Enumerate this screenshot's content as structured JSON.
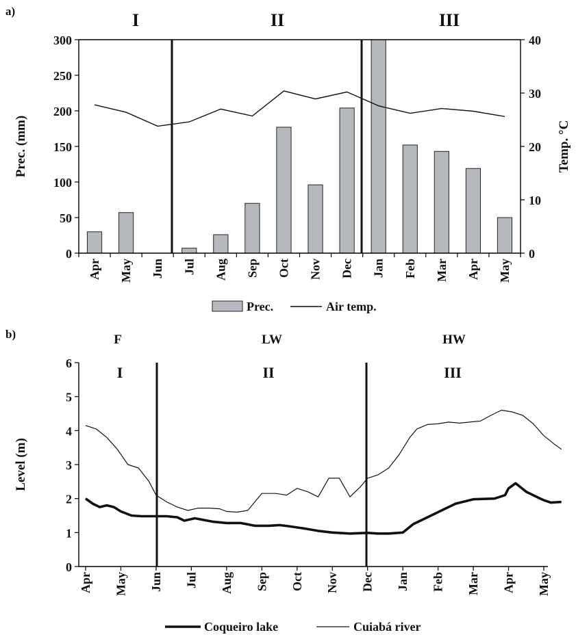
{
  "chart_data": [
    {
      "panel_label": "a)",
      "type": "bar",
      "categories": [
        "Apr",
        "May",
        "Jun",
        "Jul",
        "Aug",
        "Sep",
        "Oct",
        "Nov",
        "Dec",
        "Jan",
        "Feb",
        "Mar",
        "Apr",
        "May"
      ],
      "series": [
        {
          "name": "Prec.",
          "type": "bar",
          "axis": "left",
          "color": "#b5b8bc",
          "values": [
            30,
            57,
            0,
            7,
            26,
            70,
            177,
            96,
            204,
            300,
            152,
            143,
            119,
            50
          ]
        },
        {
          "name": "Air temp.",
          "type": "line",
          "axis": "right",
          "color": "#111111",
          "values": [
            27.8,
            26.4,
            23.8,
            24.6,
            27.0,
            25.7,
            30.4,
            28.9,
            30.2,
            27.6,
            26.2,
            27.1,
            26.6,
            25.6
          ]
        }
      ],
      "ylabel": "Prec. (mm)",
      "ylim": [
        0,
        300
      ],
      "yticks": [
        "0",
        "50",
        "100",
        "150",
        "200",
        "250",
        "300"
      ],
      "y2label": "Temp. °C",
      "y2lim": [
        0,
        40
      ],
      "y2ticks": [
        "0",
        "10",
        "20",
        "30",
        "40"
      ],
      "phases": [
        {
          "label": "I",
          "start": "Apr",
          "end": "Jun"
        },
        {
          "label": "II",
          "start": "Jul",
          "end": "Dec"
        },
        {
          "label": "III",
          "start": "Jan",
          "end": "May"
        }
      ],
      "legend_position": "bottom",
      "grid": false
    },
    {
      "panel_label": "b)",
      "type": "line",
      "x_months": [
        "Apr",
        "May",
        "Jun",
        "Jul",
        "Aug",
        "Sep",
        "Oct",
        "Nov",
        "Dec",
        "Jan",
        "Feb",
        "Mar",
        "Apr",
        "May"
      ],
      "ylabel": "Level (m)",
      "ylim": [
        0,
        6
      ],
      "yticks": [
        "0",
        "1",
        "2",
        "3",
        "4",
        "5",
        "6"
      ],
      "series": [
        {
          "name": "Coqueiro lake",
          "width": "thick",
          "x": [
            0,
            0.2,
            0.4,
            0.6,
            0.8,
            1.0,
            1.3,
            1.6,
            2.0,
            2.3,
            2.6,
            2.8,
            3.1,
            3.6,
            4.0,
            4.4,
            4.8,
            5.2,
            5.5,
            5.8,
            6.2,
            6.6,
            7.0,
            7.5,
            8.0,
            8.3,
            8.6,
            9.0,
            9.3,
            9.7,
            10.0,
            10.5,
            11.0,
            11.3,
            11.6,
            11.9,
            12.0,
            12.2,
            12.5,
            12.8,
            13.0,
            13.2,
            13.5
          ],
          "y": [
            2.0,
            1.85,
            1.75,
            1.8,
            1.75,
            1.62,
            1.5,
            1.48,
            1.48,
            1.48,
            1.45,
            1.35,
            1.42,
            1.32,
            1.28,
            1.28,
            1.2,
            1.2,
            1.22,
            1.18,
            1.12,
            1.05,
            1.0,
            0.97,
            0.99,
            0.97,
            0.97,
            1.0,
            1.25,
            1.45,
            1.6,
            1.85,
            1.98,
            1.99,
            2.0,
            2.1,
            2.3,
            2.45,
            2.2,
            2.05,
            1.95,
            1.88,
            1.9
          ]
        },
        {
          "name": "Cuiabá river",
          "width": "thin",
          "x": [
            0,
            0.3,
            0.6,
            0.9,
            1.2,
            1.5,
            1.8,
            2.0,
            2.3,
            2.6,
            2.9,
            3.2,
            3.5,
            3.8,
            4.0,
            4.3,
            4.6,
            5.0,
            5.4,
            5.7,
            6.0,
            6.3,
            6.6,
            6.9,
            7.2,
            7.5,
            7.8,
            8.0,
            8.3,
            8.6,
            8.9,
            9.2,
            9.4,
            9.7,
            10.0,
            10.3,
            10.6,
            10.9,
            11.2,
            11.5,
            11.8,
            12.1,
            12.4,
            12.7,
            13.0,
            13.3,
            13.5
          ],
          "y": [
            4.15,
            4.05,
            3.8,
            3.45,
            3.0,
            2.9,
            2.5,
            2.1,
            1.9,
            1.75,
            1.65,
            1.72,
            1.72,
            1.7,
            1.62,
            1.6,
            1.65,
            2.15,
            2.15,
            2.1,
            2.3,
            2.2,
            2.05,
            2.6,
            2.6,
            2.05,
            2.35,
            2.6,
            2.7,
            2.9,
            3.3,
            3.8,
            4.05,
            4.18,
            4.2,
            4.25,
            4.22,
            4.25,
            4.28,
            4.45,
            4.6,
            4.55,
            4.45,
            4.2,
            3.85,
            3.6,
            3.45
          ]
        }
      ],
      "phases_top": [
        {
          "label": "F",
          "start": "Apr",
          "end": "Jun"
        },
        {
          "label": "LW",
          "start": "Jun",
          "end": "Dec"
        },
        {
          "label": "HW",
          "start": "Dec",
          "end": "May"
        }
      ],
      "phases": [
        {
          "label": "I",
          "start": "Apr",
          "end": "Jun"
        },
        {
          "label": "II",
          "start": "Jun",
          "end": "Dec"
        },
        {
          "label": "III",
          "start": "Dec",
          "end": "May"
        }
      ],
      "legend_position": "bottom",
      "grid": false
    }
  ]
}
